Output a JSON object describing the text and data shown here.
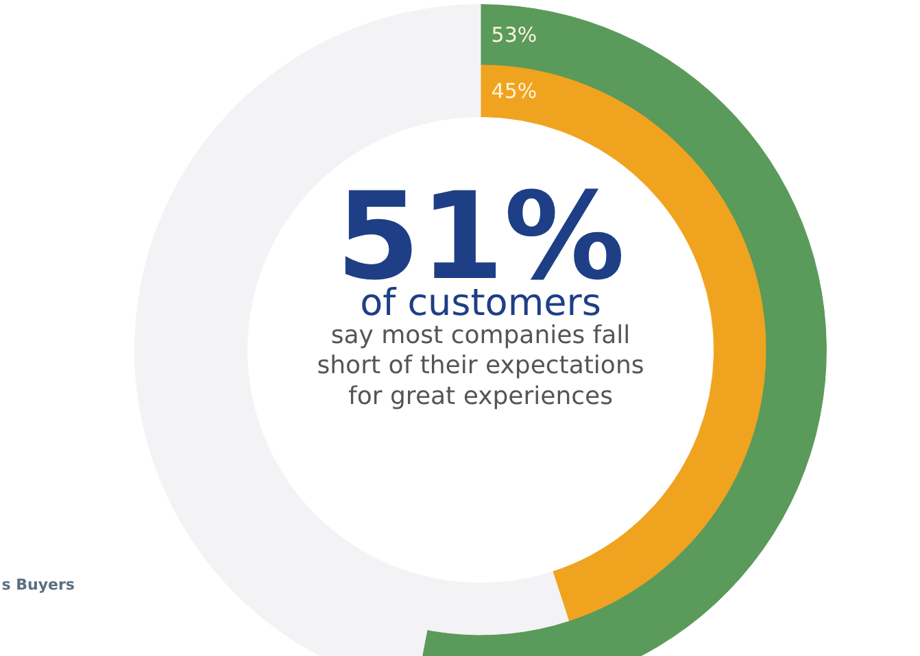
{
  "chart_data": {
    "type": "donut",
    "series": [
      {
        "values": [
          53,
          47
        ],
        "colors": [
          "#5a9a5b",
          "#f3f3f5"
        ],
        "value_labels": [
          "53%",
          null
        ]
      },
      {
        "values": [
          45,
          55
        ],
        "colors": [
          "#f0a31e",
          "#f3f3f5"
        ],
        "value_labels": [
          "45%",
          null
        ]
      }
    ],
    "annotations": [
      "51%",
      "of customers",
      "say most companies fall",
      "short of their expectations",
      "for great experiences",
      "s Buyers"
    ]
  }
}
